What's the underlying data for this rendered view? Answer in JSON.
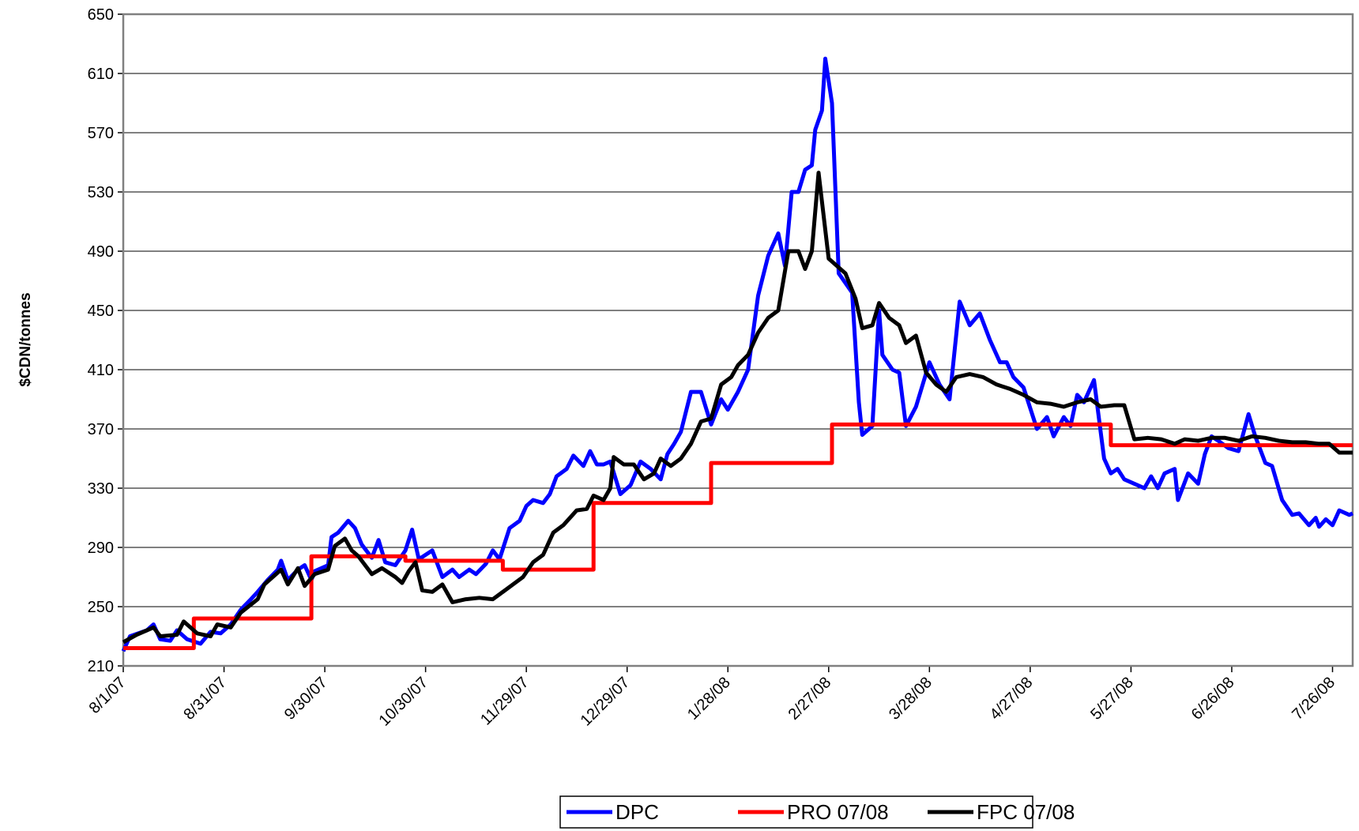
{
  "chart_data": {
    "type": "line",
    "ylabel": "$CDN/tonnes",
    "xlim": [
      "8/1/07",
      "8/1/08"
    ],
    "xticks": [
      "8/1/07",
      "8/31/07",
      "9/30/07",
      "10/30/07",
      "11/29/07",
      "12/29/07",
      "1/28/08",
      "2/27/08",
      "3/28/08",
      "4/27/08",
      "5/27/08",
      "6/26/08",
      "7/26/08"
    ],
    "ylim": [
      210,
      650
    ],
    "yticks": [
      210,
      250,
      290,
      330,
      370,
      410,
      450,
      490,
      530,
      570,
      610,
      650
    ],
    "grid": true,
    "legend": "bottom",
    "series": [
      {
        "name": "DPC",
        "color": "#0000ff",
        "x": [
          "8/1/07",
          "8/3/07",
          "8/8/07",
          "8/10/07",
          "8/12/07",
          "8/15/07",
          "8/17/07",
          "8/20/07",
          "8/24/07",
          "8/27/07",
          "8/30/07",
          "9/2/07",
          "9/5/07",
          "9/8/07",
          "9/10/07",
          "9/13/07",
          "9/16/07",
          "9/17/07",
          "9/19/07",
          "9/22/07",
          "9/24/07",
          "9/26/07",
          "9/27/07",
          "10/1/07",
          "10/2/07",
          "10/4/07",
          "10/7/07",
          "10/9/07",
          "10/11/07",
          "10/14/07",
          "10/16/07",
          "10/18/07",
          "10/21/07",
          "10/24/07",
          "10/26/07",
          "10/28/07",
          "11/1/07",
          "11/4/07",
          "11/7/07",
          "11/9/07",
          "11/12/07",
          "11/14/07",
          "11/17/07",
          "11/19/07",
          "11/21/07",
          "11/24/07",
          "11/27/07",
          "11/29/07",
          "12/1/07",
          "12/4/07",
          "12/6/07",
          "12/8/07",
          "12/11/07",
          "12/13/07",
          "12/16/07",
          "12/18/07",
          "12/20/07",
          "12/22/07",
          "12/24/07",
          "12/27/07",
          "12/30/07",
          "1/2/08",
          "1/5/08",
          "1/8/08",
          "1/10/08",
          "1/12/08",
          "1/14/08",
          "1/17/08",
          "1/20/08",
          "1/23/08",
          "1/26/08",
          "1/28/08",
          "1/31/08",
          "2/3/08",
          "2/6/08",
          "2/9/08",
          "2/12/08",
          "2/14/08",
          "2/16/08",
          "2/18/08",
          "2/20/08",
          "2/22/08",
          "2/23/08",
          "2/25/08",
          "2/26/08",
          "2/28/08",
          "3/1/08",
          "3/5/08",
          "3/7/08",
          "3/8/08",
          "3/11/08",
          "3/13/08",
          "3/14/08",
          "3/17/08",
          "3/19/08",
          "3/21/08",
          "3/24/08",
          "3/26/08",
          "3/28/08",
          "3/31/08",
          "4/3/08",
          "4/6/08",
          "4/9/08",
          "4/12/08",
          "4/15/08",
          "4/18/08",
          "4/20/08",
          "4/22/08",
          "4/25/08",
          "4/29/08",
          "5/2/08",
          "5/4/08",
          "5/7/08",
          "5/9/08",
          "5/11/08",
          "5/13/08",
          "5/16/08",
          "5/19/08",
          "5/21/08",
          "5/23/08",
          "5/25/08",
          "5/28/08",
          "5/31/08",
          "6/2/08",
          "6/4/08",
          "6/6/08",
          "6/9/08",
          "6/10/08",
          "6/13/08",
          "6/16/08",
          "6/18/08",
          "6/20/08",
          "6/22/08",
          "6/25/08",
          "6/28/08",
          "7/1/08",
          "7/3/08",
          "7/6/08",
          "7/8/08",
          "7/11/08",
          "7/14/08",
          "7/16/08",
          "7/19/08",
          "7/21/08",
          "7/22/08",
          "7/24/08",
          "7/26/08",
          "7/28/08",
          "7/31/08",
          "8/1/08"
        ],
        "values": [
          220,
          230,
          234,
          238,
          228,
          227,
          234,
          228,
          225,
          233,
          232,
          238,
          248,
          255,
          260,
          268,
          275,
          281,
          268,
          275,
          278,
          268,
          274,
          278,
          297,
          300,
          308,
          303,
          292,
          283,
          295,
          280,
          278,
          288,
          302,
          282,
          288,
          270,
          275,
          270,
          275,
          272,
          279,
          288,
          282,
          303,
          308,
          318,
          322,
          320,
          326,
          338,
          343,
          352,
          345,
          355,
          346,
          346,
          348,
          326,
          332,
          348,
          343,
          336,
          353,
          360,
          368,
          395,
          395,
          373,
          390,
          383,
          395,
          410,
          460,
          487,
          502,
          480,
          530,
          530,
          545,
          548,
          572,
          585,
          620,
          590,
          475,
          462,
          388,
          366,
          372,
          450,
          420,
          410,
          408,
          372,
          385,
          400,
          415,
          400,
          390,
          456,
          440,
          448,
          430,
          415,
          415,
          405,
          398,
          370,
          378,
          365,
          378,
          372,
          393,
          388,
          403,
          350,
          340,
          343,
          336,
          333,
          330,
          338,
          330,
          340,
          343,
          322,
          340,
          333,
          353,
          365,
          362,
          357,
          355,
          380,
          365,
          347,
          345,
          322,
          312,
          313,
          305,
          310,
          304,
          309,
          305,
          315,
          312,
          313
        ]
      },
      {
        "name": "PRO 07/08",
        "color": "#ff0000",
        "x": [
          "8/1/07",
          "8/22/07",
          "8/22/07",
          "9/26/07",
          "9/26/07",
          "10/24/07",
          "10/24/07",
          "11/22/07",
          "11/22/07",
          "12/19/07",
          "12/19/07",
          "1/23/08",
          "1/23/08",
          "2/28/08",
          "2/28/08",
          "5/21/08",
          "5/21/08",
          "8/1/08"
        ],
        "values": [
          222,
          222,
          242,
          242,
          284,
          284,
          281,
          281,
          275,
          275,
          320,
          320,
          347,
          347,
          373,
          373,
          359,
          359
        ]
      },
      {
        "name": "FPC 07/08",
        "color": "#000000",
        "x": [
          "8/1/07",
          "8/5/07",
          "8/10/07",
          "8/12/07",
          "8/17/07",
          "8/19/07",
          "8/23/07",
          "8/27/07",
          "8/29/07",
          "9/2/07",
          "9/5/07",
          "9/10/07",
          "9/12/07",
          "9/17/07",
          "9/19/07",
          "9/22/07",
          "9/24/07",
          "9/27/07",
          "10/1/07",
          "10/3/07",
          "10/6/07",
          "10/8/07",
          "10/10/07",
          "10/14/07",
          "10/17/07",
          "10/21/07",
          "10/23/07",
          "10/25/07",
          "10/27/07",
          "10/29/07",
          "11/1/07",
          "11/4/07",
          "11/7/07",
          "11/11/07",
          "11/15/07",
          "11/19/07",
          "11/22/07",
          "11/25/07",
          "11/28/07",
          "12/1/07",
          "12/4/07",
          "12/7/07",
          "12/10/07",
          "12/14/07",
          "12/17/07",
          "12/19/07",
          "12/22/07",
          "12/24/07",
          "12/25/07",
          "12/28/07",
          "12/31/07",
          "1/3/08",
          "1/6/08",
          "1/8/08",
          "1/11/08",
          "1/14/08",
          "1/17/08",
          "1/20/08",
          "1/23/08",
          "1/26/08",
          "1/29/08",
          "1/31/08",
          "2/3/08",
          "2/6/08",
          "2/9/08",
          "2/12/08",
          "2/15/08",
          "2/18/08",
          "2/20/08",
          "2/22/08",
          "2/24/08",
          "2/27/08",
          "3/3/08",
          "3/6/08",
          "3/8/08",
          "3/11/08",
          "3/13/08",
          "3/16/08",
          "3/19/08",
          "3/21/08",
          "3/24/08",
          "3/27/08",
          "3/30/08",
          "4/2/08",
          "4/5/08",
          "4/9/08",
          "4/13/08",
          "4/17/08",
          "4/21/08",
          "4/25/08",
          "4/29/08",
          "5/3/08",
          "5/7/08",
          "5/11/08",
          "5/15/08",
          "5/18/08",
          "5/22/08",
          "5/25/08",
          "5/28/08",
          "6/1/08",
          "6/5/08",
          "6/9/08",
          "6/12/08",
          "6/16/08",
          "6/20/08",
          "6/24/08",
          "6/28/08",
          "7/2/08",
          "7/6/08",
          "7/10/08",
          "7/14/08",
          "7/18/08",
          "7/22/08",
          "7/25/08",
          "7/28/08",
          "8/1/08"
        ],
        "values": [
          226,
          231,
          236,
          230,
          231,
          240,
          232,
          230,
          238,
          236,
          246,
          255,
          265,
          275,
          265,
          276,
          264,
          272,
          275,
          291,
          296,
          288,
          284,
          272,
          276,
          270,
          266,
          274,
          280,
          261,
          260,
          265,
          253,
          255,
          256,
          255,
          260,
          265,
          270,
          280,
          285,
          300,
          305,
          315,
          316,
          325,
          322,
          330,
          351,
          346,
          346,
          336,
          340,
          350,
          345,
          350,
          360,
          375,
          377,
          400,
          405,
          413,
          420,
          435,
          445,
          450,
          490,
          490,
          478,
          490,
          543,
          485,
          475,
          458,
          438,
          440,
          455,
          445,
          440,
          428,
          433,
          408,
          400,
          395,
          405,
          407,
          405,
          400,
          397,
          393,
          388,
          387,
          385,
          388,
          390,
          385,
          386,
          386,
          363,
          364,
          363,
          360,
          363,
          362,
          364,
          364,
          362,
          365,
          364,
          362,
          361,
          361,
          360,
          360,
          354,
          354
        ]
      }
    ]
  }
}
